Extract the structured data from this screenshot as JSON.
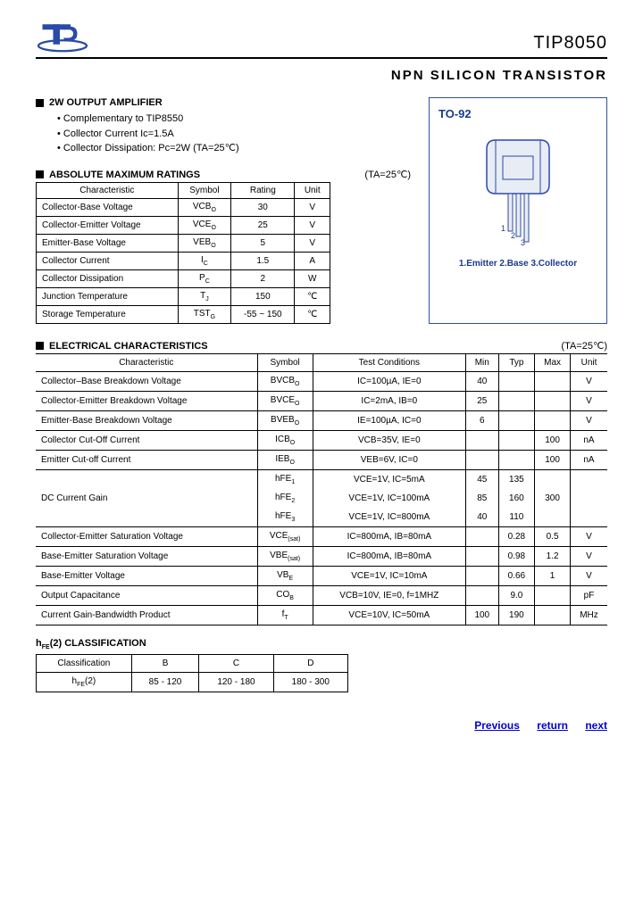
{
  "header": {
    "part_number": "TIP8050",
    "main_title": "NPN SILICON TRANSISTOR"
  },
  "amplifier": {
    "heading": "2W OUTPUT AMPLIFIER",
    "bullets": [
      "Complementary to TIP8550",
      "Collector Current Ic=1.5A",
      "Collector Dissipation: Pc=2W (TA=25℃)"
    ]
  },
  "package": {
    "label": "TO-92",
    "pins_text": "1.Emitter 2.Base 3.Collector",
    "outline_color": "#3050a0",
    "text_color": "#1a3a8a"
  },
  "amr": {
    "heading": "ABSOLUTE MAXIMUM RATINGS",
    "condition": "(TA=25℃)",
    "columns": [
      "Characteristic",
      "Symbol",
      "Rating",
      "Unit"
    ],
    "rows": [
      [
        "Collector-Base Voltage",
        "VCBO",
        "30",
        "V"
      ],
      [
        "Collector-Emitter Voltage",
        "VCEO",
        "25",
        "V"
      ],
      [
        "Emitter-Base Voltage",
        "VEBO",
        "5",
        "V"
      ],
      [
        "Collector Current",
        "IC",
        "1.5",
        "A"
      ],
      [
        "Collector Dissipation",
        "PC",
        "2",
        "W"
      ],
      [
        "Junction Temperature",
        "TJ",
        "150",
        "℃"
      ],
      [
        "Storage Temperature",
        "TSTG",
        "-55 ~ 150",
        "℃"
      ]
    ]
  },
  "ec": {
    "heading": "ELECTRICAL CHARACTERISTICS",
    "condition": "(TA=25℃)",
    "columns": [
      "Characteristic",
      "Symbol",
      "Test Conditions",
      "Min",
      "Typ",
      "Max",
      "Unit"
    ],
    "rows": [
      {
        "c": "Collector–Base Breakdown Voltage",
        "s": "BVCBO",
        "t": "IC=100µA, IE=0",
        "min": "40",
        "typ": "",
        "max": "",
        "u": "V"
      },
      {
        "c": "Collector-Emitter Breakdown Voltage",
        "s": "BVCEO",
        "t": "IC=2mA, IB=0",
        "min": "25",
        "typ": "",
        "max": "",
        "u": "V"
      },
      {
        "c": "Emitter-Base Breakdown Voltage",
        "s": "BVEBO",
        "t": "IE=100µA, IC=0",
        "min": "6",
        "typ": "",
        "max": "",
        "u": "V"
      },
      {
        "c": "Collector Cut-Off Current",
        "s": "ICBO",
        "t": "VCB=35V, IE=0",
        "min": "",
        "typ": "",
        "max": "100",
        "u": "nA"
      },
      {
        "c": "Emitter Cut-off Current",
        "s": "IEBO",
        "t": "VEB=6V, IC=0",
        "min": "",
        "typ": "",
        "max": "100",
        "u": "nA"
      },
      {
        "c": "",
        "s": "hFE1",
        "t": "VCE=1V, IC=5mA",
        "min": "45",
        "typ": "135",
        "max": "",
        "u": "",
        "group": "dc"
      },
      {
        "c": "DC Current Gain",
        "s": "hFE2",
        "t": "VCE=1V, IC=100mA",
        "min": "85",
        "typ": "160",
        "max": "300",
        "u": "",
        "group": "dc"
      },
      {
        "c": "",
        "s": "hFE3",
        "t": "VCE=1V, IC=800mA",
        "min": "40",
        "typ": "110",
        "max": "",
        "u": "",
        "group": "dc"
      },
      {
        "c": "Collector-Emitter Saturation Voltage",
        "s": "VCE(sat)",
        "t": "IC=800mA, IB=80mA",
        "min": "",
        "typ": "0.28",
        "max": "0.5",
        "u": "V"
      },
      {
        "c": "Base-Emitter Saturation Voltage",
        "s": "VBE(sat)",
        "t": "IC=800mA, IB=80mA",
        "min": "",
        "typ": "0.98",
        "max": "1.2",
        "u": "V"
      },
      {
        "c": "Base-Emitter Voltage",
        "s": "VBE",
        "t": "VCE=1V, IC=10mA",
        "min": "",
        "typ": "0.66",
        "max": "1",
        "u": "V"
      },
      {
        "c": "Output Capacitance",
        "s": "COB",
        "t": "VCB=10V, IE=0, f=1MHZ",
        "min": "",
        "typ": "9.0",
        "max": "",
        "u": "pF"
      },
      {
        "c": "Current Gain-Bandwidth Product",
        "s": "fT",
        "t": "VCE=10V, IC=50mA",
        "min": "100",
        "typ": "190",
        "max": "",
        "u": "MHz"
      }
    ]
  },
  "hfe": {
    "heading": "hFE(2) CLASSIFICATION",
    "columns": [
      "Classification",
      "B",
      "C",
      "D"
    ],
    "rows": [
      [
        "hFE(2)",
        "85 - 120",
        "120 - 180",
        "180 - 300"
      ]
    ]
  },
  "footer": {
    "previous": "Previous",
    "return": "return",
    "next": "next",
    "link_color": "#0000cc"
  }
}
